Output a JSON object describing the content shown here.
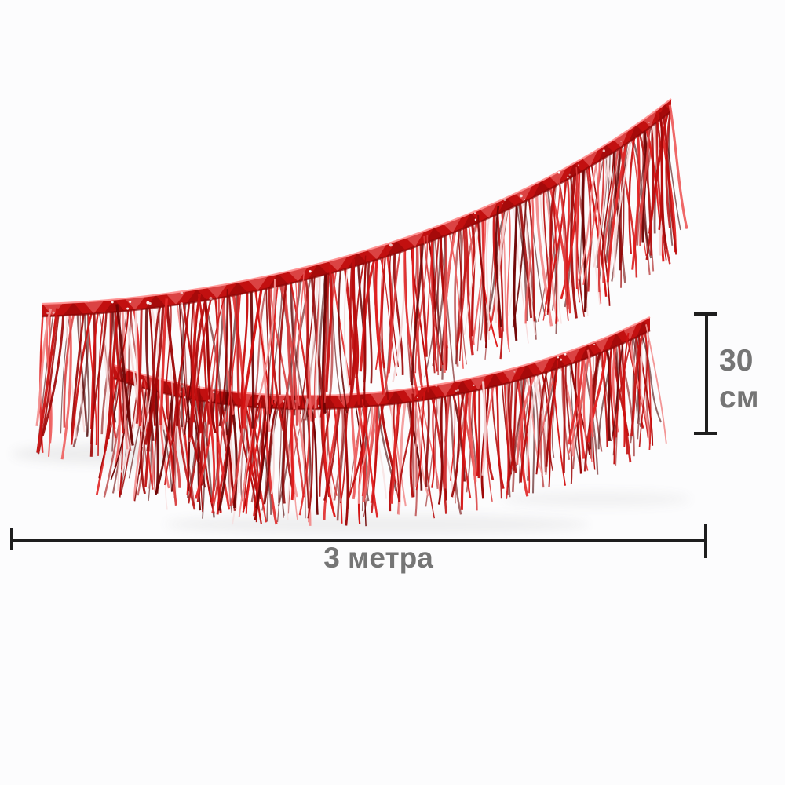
{
  "page": {
    "type": "product-photo-with-dimension-annotations",
    "background": "#fcfcfd"
  },
  "annotations": {
    "height_dimension": {
      "value": "30",
      "unit": "см",
      "line_color": "#1e1e1e",
      "label_color": "#757575"
    },
    "length_dimension": {
      "label": "3 метра",
      "line_color": "#1e1e1e",
      "label_color": "#757575"
    }
  },
  "tinsel": {
    "description": "Red metallic foil fringe tinsel garland shown as two sagging curved sections",
    "seed": 20241207,
    "colors": {
      "strand_palette": [
        "#b90d0d",
        "#d31212",
        "#a30808",
        "#e02a2a",
        "#8c0606",
        "#c81111",
        "#ee6060",
        "#700404",
        "#d94040",
        "#b00b0b",
        "#f29090",
        "#9d0707",
        "#e01e1e",
        "#c00f0f"
      ],
      "strand_dark": [
        "#8c0606",
        "#700404",
        "#5e0303",
        "#a30808",
        "#4a0202"
      ],
      "highlight": "#f6d7d7",
      "highlight_chance": 0.08,
      "band_base": "#c21010",
      "facet_light": "#ff8a8a",
      "facet_dark": "#7c0303",
      "band_top_edge": "#ff9292",
      "band_bottom_edge": "#8a0505",
      "sparkle": "#ffffff",
      "shadow": "#6b6b6b"
    },
    "garlands": [
      {
        "name": "lower",
        "band": {
          "p0": [
            145,
            465
          ],
          "c1": [
            350,
            540
          ],
          "c2": [
            640,
            500
          ],
          "p1": [
            828,
            404
          ],
          "height": 17
        },
        "strands": {
          "count": 170,
          "length": 132,
          "length_var": 22,
          "drift": 24,
          "width_min": 1.3,
          "width_max": 3.2
        },
        "sparkles": 22
      },
      {
        "name": "upper",
        "band": {
          "p0": [
            54,
            387
          ],
          "c1": [
            350,
            378
          ],
          "c2": [
            660,
            280
          ],
          "p1": [
            855,
            126
          ],
          "height": 16
        },
        "strands": {
          "count": 180,
          "length": 165,
          "length_var": 22,
          "drift": 26,
          "width_min": 1.3,
          "width_max": 3.4
        },
        "sparkles": 26
      }
    ],
    "shadows": [
      [
        165,
        578,
        150,
        14,
        0.1
      ],
      [
        480,
        668,
        270,
        13,
        0.09
      ],
      [
        760,
        636,
        120,
        10,
        0.07
      ]
    ]
  }
}
